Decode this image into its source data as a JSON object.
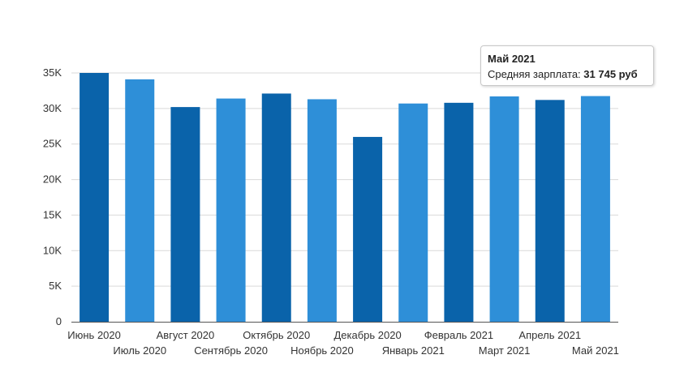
{
  "chart_data": {
    "type": "bar",
    "categories": [
      "Июнь 2020",
      "Июль 2020",
      "Август 2020",
      "Сентябрь 2020",
      "Октябрь 2020",
      "Ноябрь 2020",
      "Декабрь 2020",
      "Январь 2021",
      "Февраль 2021",
      "Март 2021",
      "Апрель 2021",
      "Май 2021"
    ],
    "values": [
      35000,
      34100,
      30200,
      31400,
      32100,
      31300,
      26000,
      30700,
      30800,
      31700,
      31200,
      31745
    ],
    "ylim": [
      0,
      35000
    ],
    "yticks": [
      0,
      5000,
      10000,
      15000,
      20000,
      25000,
      30000,
      35000
    ],
    "ytick_labels": [
      "0",
      "5K",
      "10K",
      "15K",
      "20K",
      "25K",
      "30K",
      "35K"
    ],
    "grid": true,
    "colors": {
      "dark": "#0a63aa",
      "light": "#2e8fd8",
      "grid": "#d9d9d9",
      "axis": "#555555"
    }
  },
  "tooltip": {
    "title": "Май 2021",
    "label": "Средняя зарплата: ",
    "value": "31 745 руб"
  }
}
